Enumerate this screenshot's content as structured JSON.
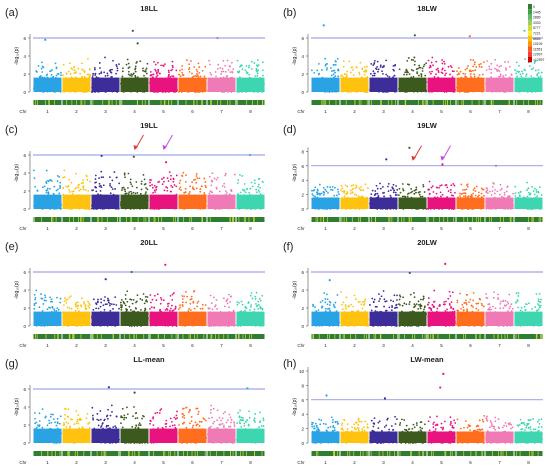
{
  "figure": {
    "chromosome_axis_label": "Chr",
    "ylabel": "-log₁₀(p)",
    "legend": {
      "title": "",
      "entries": [
        "0",
        "1445",
        "2889",
        "4333",
        "5777",
        "7221",
        "8665",
        "10109",
        "11553",
        "12997",
        ">12997"
      ],
      "colors": [
        "#2e7d32",
        "#43a047",
        "#66bb6a",
        "#9ccc65",
        "#cddc39",
        "#ffeb3b",
        "#ffc107",
        "#ff9800",
        "#ff5722",
        "#f44336",
        "#d50000"
      ]
    }
  },
  "chart_data": [
    {
      "type": "scatter",
      "panel_label": "(a)",
      "title": "18LL",
      "threshold": 6,
      "ylim": [
        0,
        8
      ],
      "yticks": [
        0,
        2,
        4,
        6
      ],
      "categories": [
        "1",
        "2",
        "3",
        "4",
        "5",
        "6",
        "7",
        "8"
      ],
      "series_colors": [
        "#29a3e3",
        "#ffc20e",
        "#3c2d98",
        "#3d5a1e",
        "#e8137e",
        "#ff6d1f",
        "#f07ab6",
        "#3dd6b0"
      ],
      "base_height": 3.3,
      "peaks": [
        {
          "chr": "4",
          "value": 6.8
        },
        {
          "chr": "1",
          "value": 5.8
        },
        {
          "chr": "4",
          "value": 5.4
        },
        {
          "chr": "7",
          "value": 6.0
        }
      ]
    },
    {
      "type": "scatter",
      "panel_label": "(b)",
      "title": "18LW",
      "threshold": 6,
      "ylim": [
        0,
        8
      ],
      "yticks": [
        0,
        2,
        4,
        6
      ],
      "categories": [
        "1",
        "2",
        "3",
        "4",
        "5",
        "6",
        "7",
        "8"
      ],
      "series_colors": [
        "#29a3e3",
        "#ffc20e",
        "#3c2d98",
        "#3d5a1e",
        "#e8137e",
        "#ff6d1f",
        "#f07ab6",
        "#3dd6b0"
      ],
      "base_height": 3.4,
      "peaks": [
        {
          "chr": "1",
          "value": 7.4
        },
        {
          "chr": "4",
          "value": 6.3
        },
        {
          "chr": "8",
          "value": 6.8
        },
        {
          "chr": "6",
          "value": 6.2
        }
      ]
    },
    {
      "type": "scatter",
      "panel_label": "(c)",
      "title": "19LL",
      "threshold": 6,
      "ylim": [
        0,
        8
      ],
      "yticks": [
        0,
        2,
        4,
        6
      ],
      "categories": [
        "1",
        "2",
        "3",
        "4",
        "5",
        "6",
        "7",
        "8"
      ],
      "series_colors": [
        "#29a3e3",
        "#ffc20e",
        "#3c2d98",
        "#3d5a1e",
        "#e8137e",
        "#ff6d1f",
        "#f07ab6",
        "#3dd6b0"
      ],
      "base_height": 3.8,
      "arrows": [
        {
          "chr": "4",
          "color": "#e53935"
        },
        {
          "chr": "5",
          "color": "#c051e0"
        }
      ],
      "peaks": [
        {
          "chr": "4",
          "value": 5.8
        },
        {
          "chr": "3",
          "value": 5.9
        },
        {
          "chr": "8",
          "value": 6.0
        },
        {
          "chr": "5",
          "value": 5.2
        }
      ]
    },
    {
      "type": "scatter",
      "panel_label": "(d)",
      "title": "19LW",
      "threshold": 6,
      "ylim": [
        0,
        10
      ],
      "yticks": [
        0,
        2,
        4,
        6,
        8
      ],
      "categories": [
        "1",
        "2",
        "3",
        "4",
        "5",
        "6",
        "7",
        "8"
      ],
      "series_colors": [
        "#29a3e3",
        "#ffc20e",
        "#3c2d98",
        "#3d5a1e",
        "#e8137e",
        "#ff6d1f",
        "#f07ab6",
        "#3dd6b0"
      ],
      "base_height": 3.3,
      "arrows": [
        {
          "chr": "4",
          "color": "#e53935"
        },
        {
          "chr": "5",
          "color": "#c051e0"
        }
      ],
      "peaks": [
        {
          "chr": "4",
          "value": 8.5
        },
        {
          "chr": "3",
          "value": 6.9
        },
        {
          "chr": "5",
          "value": 6.2
        },
        {
          "chr": "7",
          "value": 6.0
        }
      ]
    },
    {
      "type": "scatter",
      "panel_label": "(e)",
      "title": "20LL",
      "threshold": 6,
      "ylim": [
        0,
        8
      ],
      "yticks": [
        0,
        2,
        4,
        6
      ],
      "categories": [
        "1",
        "2",
        "3",
        "4",
        "5",
        "6",
        "7",
        "8"
      ],
      "series_colors": [
        "#29a3e3",
        "#ffc20e",
        "#3c2d98",
        "#3d5a1e",
        "#e8137e",
        "#ff6d1f",
        "#f07ab6",
        "#3dd6b0"
      ],
      "base_height": 3.5,
      "peaks": [
        {
          "chr": "5",
          "value": 6.8
        },
        {
          "chr": "4",
          "value": 6.0
        },
        {
          "chr": "3",
          "value": 5.2
        }
      ]
    },
    {
      "type": "scatter",
      "panel_label": "(f)",
      "title": "20LW",
      "threshold": 6,
      "ylim": [
        0,
        8
      ],
      "yticks": [
        0,
        2,
        4,
        6
      ],
      "categories": [
        "1",
        "2",
        "3",
        "4",
        "5",
        "6",
        "7",
        "8"
      ],
      "series_colors": [
        "#29a3e3",
        "#ffc20e",
        "#3c2d98",
        "#3d5a1e",
        "#e8137e",
        "#ff6d1f",
        "#f07ab6",
        "#3dd6b0"
      ],
      "base_height": 3.4,
      "peaks": [
        {
          "chr": "5",
          "value": 6.9
        },
        {
          "chr": "4",
          "value": 5.9
        },
        {
          "chr": "1",
          "value": 5.1
        }
      ]
    },
    {
      "type": "scatter",
      "panel_label": "(g)",
      "title": "LL-mean",
      "threshold": 6,
      "ylim": [
        0,
        8
      ],
      "yticks": [
        0,
        2,
        4,
        6
      ],
      "categories": [
        "1",
        "2",
        "3",
        "4",
        "5",
        "6",
        "7",
        "8"
      ],
      "series_colors": [
        "#29a3e3",
        "#ffc20e",
        "#3c2d98",
        "#3d5a1e",
        "#e8137e",
        "#ff6d1f",
        "#f07ab6",
        "#3dd6b0"
      ],
      "base_height": 3.6,
      "peaks": [
        {
          "chr": "3",
          "value": 6.2
        },
        {
          "chr": "8",
          "value": 6.1
        },
        {
          "chr": "4",
          "value": 5.6
        }
      ]
    },
    {
      "type": "scatter",
      "panel_label": "(h)",
      "title": "LW-mean",
      "threshold": 6,
      "ylim": [
        0,
        10
      ],
      "yticks": [
        0,
        2,
        4,
        6,
        8,
        10
      ],
      "categories": [
        "1",
        "2",
        "3",
        "4",
        "5",
        "6",
        "7",
        "8"
      ],
      "series_colors": [
        "#29a3e3",
        "#ffc20e",
        "#3c2d98",
        "#3d5a1e",
        "#e8137e",
        "#ff6d1f",
        "#f07ab6",
        "#3dd6b0"
      ],
      "base_height": 3.3,
      "peaks": [
        {
          "chr": "5",
          "value": 9.6
        },
        {
          "chr": "5",
          "value": 7.7
        },
        {
          "chr": "1",
          "value": 6.6
        },
        {
          "chr": "3",
          "value": 6.2
        }
      ]
    }
  ]
}
